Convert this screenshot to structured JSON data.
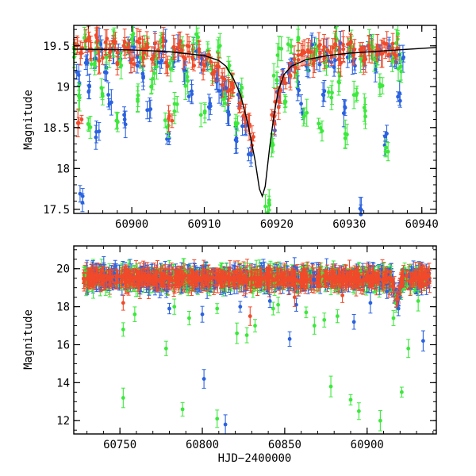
{
  "chart_data": [
    {
      "type": "scatter",
      "panel": "top",
      "title": "",
      "xlabel": "",
      "ylabel": "Magnitude",
      "xlim": [
        60892,
        60942
      ],
      "ylim": [
        19.75,
        17.45
      ],
      "y_inverted": true,
      "xticks": [
        60900,
        60910,
        60920,
        60930,
        60940
      ],
      "yticks": [
        17.5,
        18,
        18.5,
        19,
        19.5
      ],
      "series": [
        {
          "color": "#2a62e0",
          "points": [
            [
              60892.6,
              19.1
            ],
            [
              60893.0,
              17.65
            ],
            [
              60893.6,
              19.3
            ],
            [
              60894.2,
              19.0
            ],
            [
              60894.8,
              19.35
            ],
            [
              60895.3,
              18.4
            ],
            [
              60895.8,
              19.5
            ],
            [
              60896.4,
              19.2
            ],
            [
              60897.0,
              18.85
            ],
            [
              60897.6,
              19.45
            ],
            [
              60898.3,
              19.4
            ],
            [
              60898.9,
              18.6
            ],
            [
              60899.6,
              19.4
            ],
            [
              60900.3,
              19.5
            ],
            [
              60900.9,
              19.3
            ],
            [
              60901.5,
              19.15
            ],
            [
              60902.3,
              18.7
            ],
            [
              60903.0,
              19.45
            ],
            [
              60903.8,
              19.3
            ],
            [
              60904.4,
              19.5
            ],
            [
              60905.1,
              18.4
            ],
            [
              60905.9,
              19.35
            ],
            [
              60906.6,
              19.45
            ],
            [
              60907.3,
              19.2
            ],
            [
              60908.0,
              18.9
            ],
            [
              60908.7,
              19.45
            ],
            [
              60909.5,
              19.3
            ],
            [
              60910.2,
              19.35
            ],
            [
              60910.9,
              18.75
            ],
            [
              60911.6,
              19.1
            ],
            [
              60912.2,
              18.9
            ],
            [
              60912.9,
              19.0
            ],
            [
              60913.5,
              18.65
            ],
            [
              60914.2,
              18.35
            ],
            [
              60914.9,
              18.85
            ],
            [
              60915.5,
              18.55
            ],
            [
              60916.2,
              18.15
            ],
            [
              60919.5,
              18.55
            ],
            [
              60920.2,
              18.9
            ],
            [
              60920.9,
              19.15
            ],
            [
              60921.6,
              19.2
            ],
            [
              60922.3,
              19.3
            ],
            [
              60922.9,
              19.0
            ],
            [
              60923.6,
              18.75
            ],
            [
              60924.3,
              19.25
            ],
            [
              60925.0,
              19.5
            ],
            [
              60925.7,
              19.35
            ],
            [
              60926.4,
              18.9
            ],
            [
              60927.1,
              19.4
            ],
            [
              60927.8,
              19.3
            ],
            [
              60928.5,
              19.45
            ],
            [
              60929.3,
              18.7
            ],
            [
              60930.0,
              19.4
            ],
            [
              60930.7,
              19.3
            ],
            [
              60931.4,
              17.5
            ],
            [
              60932.1,
              19.35
            ],
            [
              60932.8,
              19.5
            ],
            [
              60933.5,
              19.3
            ],
            [
              60934.2,
              19.4
            ],
            [
              60934.9,
              18.35
            ],
            [
              60935.6,
              19.45
            ],
            [
              60936.3,
              19.3
            ],
            [
              60936.9,
              18.85
            ],
            [
              60937.2,
              19.4
            ]
          ]
        },
        {
          "color": "#3ce83c",
          "points": [
            [
              60892.3,
              19.4
            ],
            [
              60892.9,
              18.9
            ],
            [
              60893.4,
              19.6
            ],
            [
              60894.1,
              18.5
            ],
            [
              60894.7,
              19.3
            ],
            [
              60895.4,
              19.5
            ],
            [
              60896.0,
              18.95
            ],
            [
              60896.7,
              19.35
            ],
            [
              60897.3,
              19.55
            ],
            [
              60898.0,
              18.6
            ],
            [
              60898.6,
              19.3
            ],
            [
              60899.3,
              19.45
            ],
            [
              60900.0,
              19.6
            ],
            [
              60900.7,
              18.85
            ],
            [
              60901.3,
              19.35
            ],
            [
              60902.0,
              19.5
            ],
            [
              60902.7,
              19.0
            ],
            [
              60903.4,
              19.25
            ],
            [
              60904.1,
              19.55
            ],
            [
              60904.8,
              18.55
            ],
            [
              60905.4,
              19.3
            ],
            [
              60906.1,
              18.8
            ],
            [
              60906.9,
              19.5
            ],
            [
              60907.6,
              19.1
            ],
            [
              60908.3,
              19.45
            ],
            [
              60909.0,
              19.6
            ],
            [
              60909.8,
              18.7
            ],
            [
              60910.5,
              19.4
            ],
            [
              60911.2,
              19.2
            ],
            [
              60911.9,
              19.45
            ],
            [
              60912.6,
              18.85
            ],
            [
              60913.2,
              19.25
            ],
            [
              60913.9,
              19.0
            ],
            [
              60914.6,
              18.55
            ],
            [
              60915.3,
              18.95
            ],
            [
              60918.5,
              17.45
            ],
            [
              60918.9,
              17.55
            ],
            [
              60919.3,
              18.3
            ],
            [
              60919.8,
              19.1
            ],
            [
              60920.4,
              19.4
            ],
            [
              60921.1,
              18.85
            ],
            [
              60921.8,
              19.5
            ],
            [
              60922.5,
              19.2
            ],
            [
              60923.2,
              19.6
            ],
            [
              60923.9,
              18.65
            ],
            [
              60924.6,
              19.35
            ],
            [
              60925.3,
              19.45
            ],
            [
              60926.0,
              18.55
            ],
            [
              60926.7,
              19.3
            ],
            [
              60927.4,
              18.9
            ],
            [
              60928.1,
              19.55
            ],
            [
              60928.8,
              19.1
            ],
            [
              60929.5,
              18.4
            ],
            [
              60930.2,
              19.45
            ],
            [
              60930.9,
              18.95
            ],
            [
              60931.6,
              19.35
            ],
            [
              60932.3,
              18.7
            ],
            [
              60933.0,
              19.5
            ],
            [
              60933.7,
              19.3
            ],
            [
              60934.4,
              19.0
            ],
            [
              60935.1,
              18.25
            ],
            [
              60935.8,
              19.4
            ],
            [
              60936.5,
              19.6
            ],
            [
              60937.0,
              19.2
            ]
          ]
        },
        {
          "color": "#f04a2a",
          "points": [
            [
              60892.4,
              19.5
            ],
            [
              60892.8,
              18.55
            ],
            [
              60893.2,
              19.4
            ],
            [
              60893.9,
              19.55
            ],
            [
              60894.5,
              19.45
            ],
            [
              60895.1,
              19.6
            ],
            [
              60895.7,
              19.3
            ],
            [
              60896.3,
              19.5
            ],
            [
              60896.9,
              19.4
            ],
            [
              60897.5,
              19.55
            ],
            [
              60898.1,
              19.35
            ],
            [
              60898.8,
              19.5
            ],
            [
              60899.4,
              19.45
            ],
            [
              60900.1,
              19.3
            ],
            [
              60900.8,
              19.55
            ],
            [
              60901.4,
              19.4
            ],
            [
              60902.1,
              19.5
            ],
            [
              60902.8,
              19.35
            ],
            [
              60903.5,
              19.45
            ],
            [
              60904.2,
              19.55
            ],
            [
              60904.9,
              19.3
            ],
            [
              60905.3,
              18.6
            ],
            [
              60905.7,
              19.45
            ],
            [
              60906.4,
              19.5
            ],
            [
              60907.1,
              19.35
            ],
            [
              60907.8,
              19.45
            ],
            [
              60908.5,
              19.3
            ],
            [
              60909.2,
              19.4
            ],
            [
              60909.9,
              19.25
            ],
            [
              60910.6,
              19.35
            ],
            [
              60911.3,
              19.2
            ],
            [
              60912.0,
              19.25
            ],
            [
              60912.7,
              19.05
            ],
            [
              60913.4,
              18.95
            ],
            [
              60914.1,
              19.0
            ],
            [
              60914.8,
              18.8
            ],
            [
              60915.5,
              18.65
            ],
            [
              60916.1,
              18.5
            ],
            [
              60916.6,
              18.35
            ],
            [
              60919.6,
              18.6
            ],
            [
              60920.0,
              18.8
            ],
            [
              60920.5,
              18.95
            ],
            [
              60921.0,
              19.1
            ],
            [
              60921.7,
              19.2
            ],
            [
              60922.4,
              19.3
            ],
            [
              60923.1,
              19.35
            ],
            [
              60923.8,
              19.4
            ],
            [
              60924.5,
              19.45
            ],
            [
              60925.2,
              19.35
            ],
            [
              60925.9,
              19.5
            ],
            [
              60926.6,
              19.4
            ],
            [
              60927.3,
              19.45
            ],
            [
              60928.0,
              19.5
            ],
            [
              60928.7,
              19.35
            ],
            [
              60929.4,
              19.45
            ],
            [
              60930.1,
              19.5
            ],
            [
              60930.8,
              19.4
            ],
            [
              60931.5,
              19.45
            ],
            [
              60932.2,
              19.35
            ],
            [
              60932.9,
              19.5
            ],
            [
              60933.6,
              19.45
            ],
            [
              60934.3,
              19.4
            ],
            [
              60935.0,
              19.5
            ],
            [
              60935.7,
              19.45
            ],
            [
              60936.4,
              19.4
            ]
          ]
        }
      ],
      "model_curve": [
        [
          60892,
          19.46
        ],
        [
          60900,
          19.45
        ],
        [
          60905,
          19.43
        ],
        [
          60910,
          19.38
        ],
        [
          60912,
          19.32
        ],
        [
          60913,
          19.25
        ],
        [
          60914,
          19.1
        ],
        [
          60915,
          18.9
        ],
        [
          60916,
          18.55
        ],
        [
          60917,
          18.1
        ],
        [
          60917.6,
          17.75
        ],
        [
          60918.0,
          17.66
        ],
        [
          60918.4,
          17.78
        ],
        [
          60919.0,
          18.25
        ],
        [
          60919.6,
          18.65
        ],
        [
          60920.2,
          18.95
        ],
        [
          60921,
          19.15
        ],
        [
          60922,
          19.25
        ],
        [
          60924,
          19.33
        ],
        [
          60927,
          19.38
        ],
        [
          60930,
          19.41
        ],
        [
          60935,
          19.44
        ],
        [
          60942,
          19.48
        ]
      ]
    },
    {
      "type": "scatter",
      "panel": "bottom",
      "title": "",
      "xlabel": "HJD−2400000",
      "ylabel": "Magnitude",
      "xlim": [
        60722,
        60942
      ],
      "ylim": [
        21.2,
        11.3
      ],
      "y_inverted": true,
      "xticks": [
        60750,
        60800,
        60850,
        60900
      ],
      "yticks": [
        12,
        14,
        16,
        18,
        20
      ],
      "outliers": [
        {
          "color": "#3ce83c",
          "points": [
            [
              60752,
              13.2
            ],
            [
              60752,
              16.8
            ],
            [
              60759,
              17.6
            ],
            [
              60778,
              15.8
            ],
            [
              60783,
              18.0
            ],
            [
              60788,
              12.6
            ],
            [
              60792,
              17.4
            ],
            [
              60809,
              12.1
            ],
            [
              60809,
              17.9
            ],
            [
              60821,
              16.6
            ],
            [
              60827,
              16.5
            ],
            [
              60832,
              17.0
            ],
            [
              60843,
              17.9
            ],
            [
              60846,
              18.1
            ],
            [
              60863,
              17.7
            ],
            [
              60868,
              17.0
            ],
            [
              60874,
              17.3
            ],
            [
              60878,
              13.8
            ],
            [
              60882,
              17.5
            ],
            [
              60890,
              13.1
            ],
            [
              60895,
              12.5
            ],
            [
              60908,
              12.0
            ],
            [
              60916,
              17.4
            ],
            [
              60921,
              13.5
            ],
            [
              60925,
              15.8
            ],
            [
              60931,
              18.3
            ]
          ]
        },
        {
          "color": "#2a62e0",
          "points": [
            [
              60780,
              17.9
            ],
            [
              60800,
              17.6
            ],
            [
              60801,
              14.2
            ],
            [
              60814,
              11.8
            ],
            [
              60823,
              18.0
            ],
            [
              60841,
              18.3
            ],
            [
              60853,
              16.3
            ],
            [
              60857,
              18.1
            ],
            [
              60892,
              17.2
            ],
            [
              60902,
              18.2
            ],
            [
              60912,
              18.8
            ],
            [
              60919,
              17.9
            ],
            [
              60934,
              16.2
            ]
          ]
        },
        {
          "color": "#f04a2a",
          "points": [
            [
              60752,
              18.2
            ],
            [
              60829,
              17.5
            ],
            [
              60856,
              18.5
            ],
            [
              60885,
              18.6
            ]
          ]
        }
      ],
      "baseline": {
        "colors": [
          "#2a62e0",
          "#3ce83c",
          "#f04a2a"
        ],
        "x_range": [
          60728,
          60938
        ],
        "mean": 19.5,
        "scatter": 0.35
      },
      "flare": {
        "x_peak": 60918,
        "y_peak": 18.3
      }
    }
  ]
}
